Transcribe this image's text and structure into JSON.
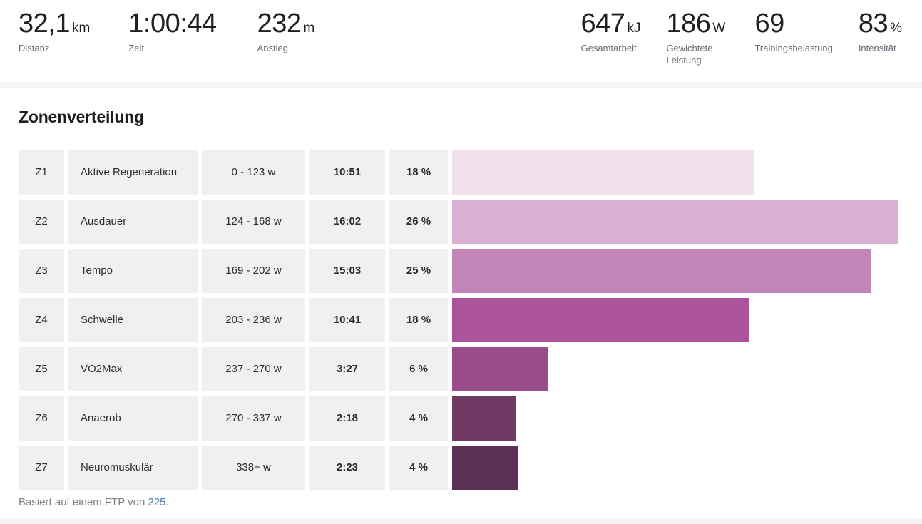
{
  "stats": [
    {
      "value": "32,1",
      "unit": "km",
      "label": "Distanz"
    },
    {
      "value": "1:00:44",
      "unit": "",
      "label": "Zeit"
    },
    {
      "value": "232",
      "unit": "m",
      "label": "Anstieg"
    },
    {
      "value": "647",
      "unit": "kJ",
      "label": "Gesamtarbeit"
    },
    {
      "value": "186",
      "unit": "W",
      "label": "Gewichtete Leistung"
    },
    {
      "value": "69",
      "unit": "",
      "label": "Trainingsbelastung"
    },
    {
      "value": "83",
      "unit": "%",
      "label": "Intensität"
    }
  ],
  "section": {
    "title": "Zonenverteilung"
  },
  "chart_data": {
    "type": "bar",
    "orientation": "horizontal",
    "title": "Zonenverteilung",
    "value_unit": "time (mm:ss) and percent of total",
    "max_seconds": 962,
    "zones": [
      {
        "zone": "Z1",
        "name": "Aktive Regeneration",
        "range": "0 - 123 w",
        "time": "10:51",
        "seconds": 651,
        "pct": "18 %",
        "color": "#f1e1ed"
      },
      {
        "zone": "Z2",
        "name": "Ausdauer",
        "range": "124 - 168 w",
        "time": "16:02",
        "seconds": 962,
        "pct": "26 %",
        "color": "#d9b0d1"
      },
      {
        "zone": "Z3",
        "name": "Tempo",
        "range": "169 - 202 w",
        "time": "15:03",
        "seconds": 903,
        "pct": "25 %",
        "color": "#c285b7"
      },
      {
        "zone": "Z4",
        "name": "Schwelle",
        "range": "203 - 236 w",
        "time": "10:41",
        "seconds": 641,
        "pct": "18 %",
        "color": "#ad529c"
      },
      {
        "zone": "Z5",
        "name": "VO2Max",
        "range": "237 - 270 w",
        "time": "3:27",
        "seconds": 207,
        "pct": "6 %",
        "color": "#9a4b89"
      },
      {
        "zone": "Z6",
        "name": "Anaerob",
        "range": "270 - 337 w",
        "time": "2:18",
        "seconds": 138,
        "pct": "4 %",
        "color": "#6f3a63"
      },
      {
        "zone": "Z7",
        "name": "Neuromuskulär",
        "range": "338+ w",
        "time": "2:23",
        "seconds": 143,
        "pct": "4 %",
        "color": "#5c3054"
      }
    ]
  },
  "footer": {
    "prefix": "Basiert auf einem FTP von ",
    "ftp_value": "225",
    "suffix": "."
  }
}
